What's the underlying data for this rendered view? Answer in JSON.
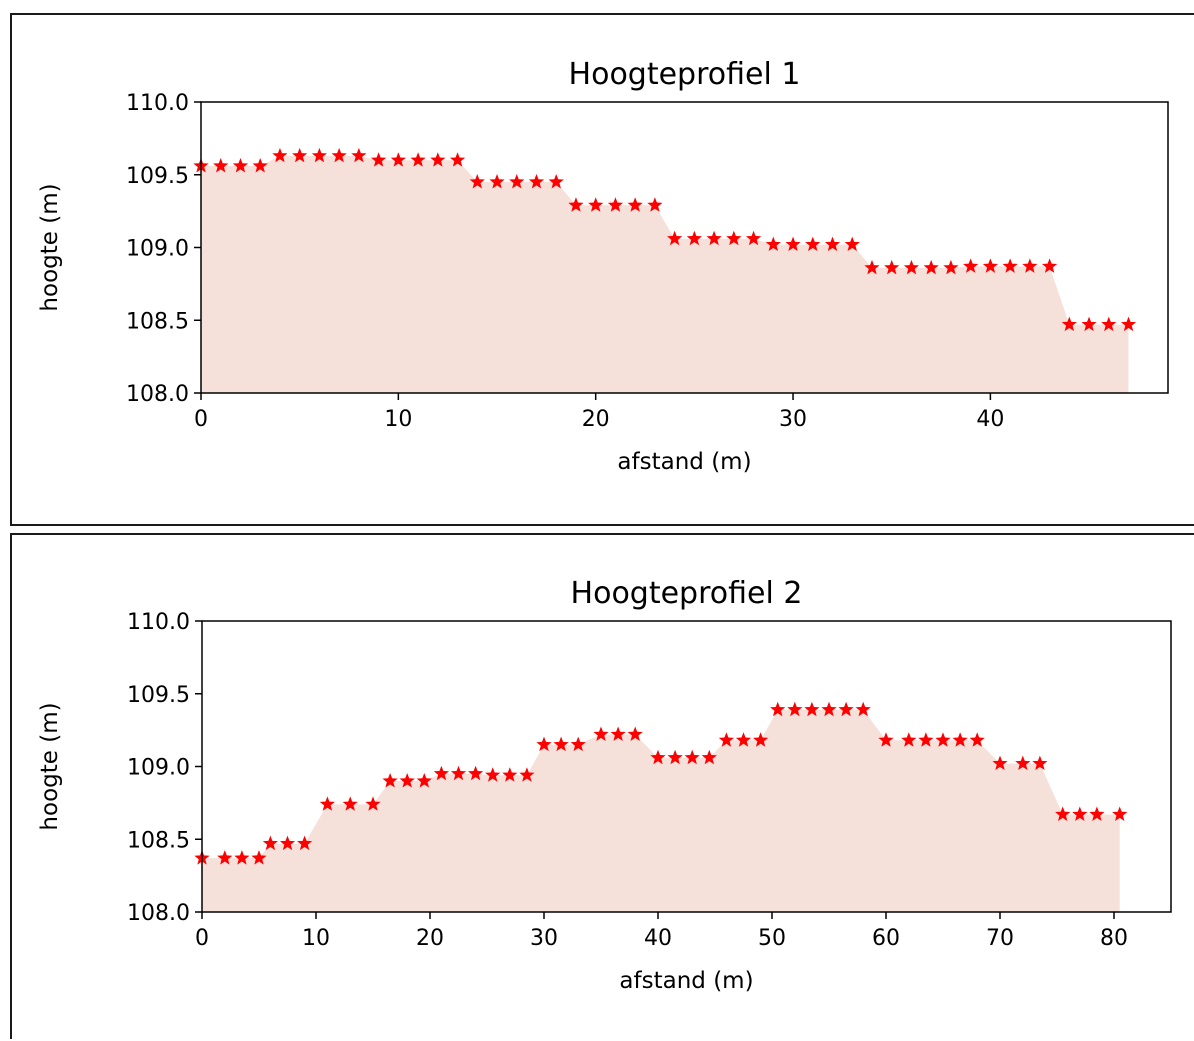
{
  "chart_data": [
    {
      "type": "area",
      "title": "Hoogteprofiel 1",
      "xlabel": "afstand (m)",
      "ylabel": "hoogte (m)",
      "xlim": [
        0,
        49
      ],
      "ylim": [
        108.0,
        110.0
      ],
      "xticks": [
        0,
        10,
        20,
        30,
        40
      ],
      "yticks": [
        "108.0",
        "108.5",
        "109.0",
        "109.5",
        "110.0"
      ],
      "grid": false,
      "fill_color": "#f5e1da",
      "marker": "star",
      "marker_color": "#ff0000",
      "x": [
        0,
        1,
        2,
        3,
        4,
        5,
        6,
        7,
        8,
        9,
        10,
        11,
        12,
        13,
        14,
        15,
        16,
        17,
        18,
        19,
        20,
        21,
        22,
        23,
        24,
        25,
        26,
        27,
        28,
        29,
        30,
        31,
        32,
        33,
        34,
        35,
        36,
        37,
        38,
        39,
        40,
        41,
        42,
        43,
        44,
        45,
        46,
        47
      ],
      "y": [
        109.56,
        109.56,
        109.56,
        109.56,
        109.63,
        109.63,
        109.63,
        109.63,
        109.63,
        109.6,
        109.6,
        109.6,
        109.6,
        109.6,
        109.45,
        109.45,
        109.45,
        109.45,
        109.45,
        109.29,
        109.29,
        109.29,
        109.29,
        109.29,
        109.06,
        109.06,
        109.06,
        109.06,
        109.06,
        109.02,
        109.02,
        109.02,
        109.02,
        109.02,
        108.86,
        108.86,
        108.86,
        108.86,
        108.86,
        108.87,
        108.87,
        108.87,
        108.87,
        108.87,
        108.47,
        108.47,
        108.47,
        108.47
      ]
    },
    {
      "type": "area",
      "title": "Hoogteprofiel 2",
      "xlabel": "afstand (m)",
      "ylabel": "hoogte (m)",
      "xlim": [
        0,
        85
      ],
      "ylim": [
        108.0,
        110.0
      ],
      "xticks": [
        0,
        10,
        20,
        30,
        40,
        50,
        60,
        70,
        80
      ],
      "yticks": [
        "108.0",
        "108.5",
        "109.0",
        "109.5",
        "110.0"
      ],
      "grid": false,
      "fill_color": "#f5e1da",
      "marker": "star",
      "marker_color": "#ff0000",
      "x": [
        0,
        2,
        3.5,
        5,
        6,
        7.5,
        9,
        11,
        13,
        15,
        16.5,
        18,
        19.5,
        21,
        22.5,
        24,
        25.5,
        27,
        28.5,
        30,
        31.5,
        33,
        35,
        36.5,
        38,
        40,
        41.5,
        43,
        44.5,
        46,
        47.5,
        49,
        50.5,
        52,
        53.5,
        55,
        56.5,
        58,
        60,
        62,
        63.5,
        65,
        66.5,
        68,
        70,
        72,
        73.5,
        75.5,
        77,
        78.5,
        80.5
      ],
      "y": [
        108.37,
        108.37,
        108.37,
        108.37,
        108.47,
        108.47,
        108.47,
        108.74,
        108.74,
        108.74,
        108.9,
        108.9,
        108.9,
        108.95,
        108.95,
        108.95,
        108.94,
        108.94,
        108.94,
        109.15,
        109.15,
        109.15,
        109.22,
        109.22,
        109.22,
        109.06,
        109.06,
        109.06,
        109.06,
        109.18,
        109.18,
        109.18,
        109.39,
        109.39,
        109.39,
        109.39,
        109.39,
        109.39,
        109.18,
        109.18,
        109.18,
        109.18,
        109.18,
        109.18,
        109.02,
        109.02,
        109.02,
        108.67,
        108.67,
        108.67,
        108.67
      ]
    }
  ]
}
